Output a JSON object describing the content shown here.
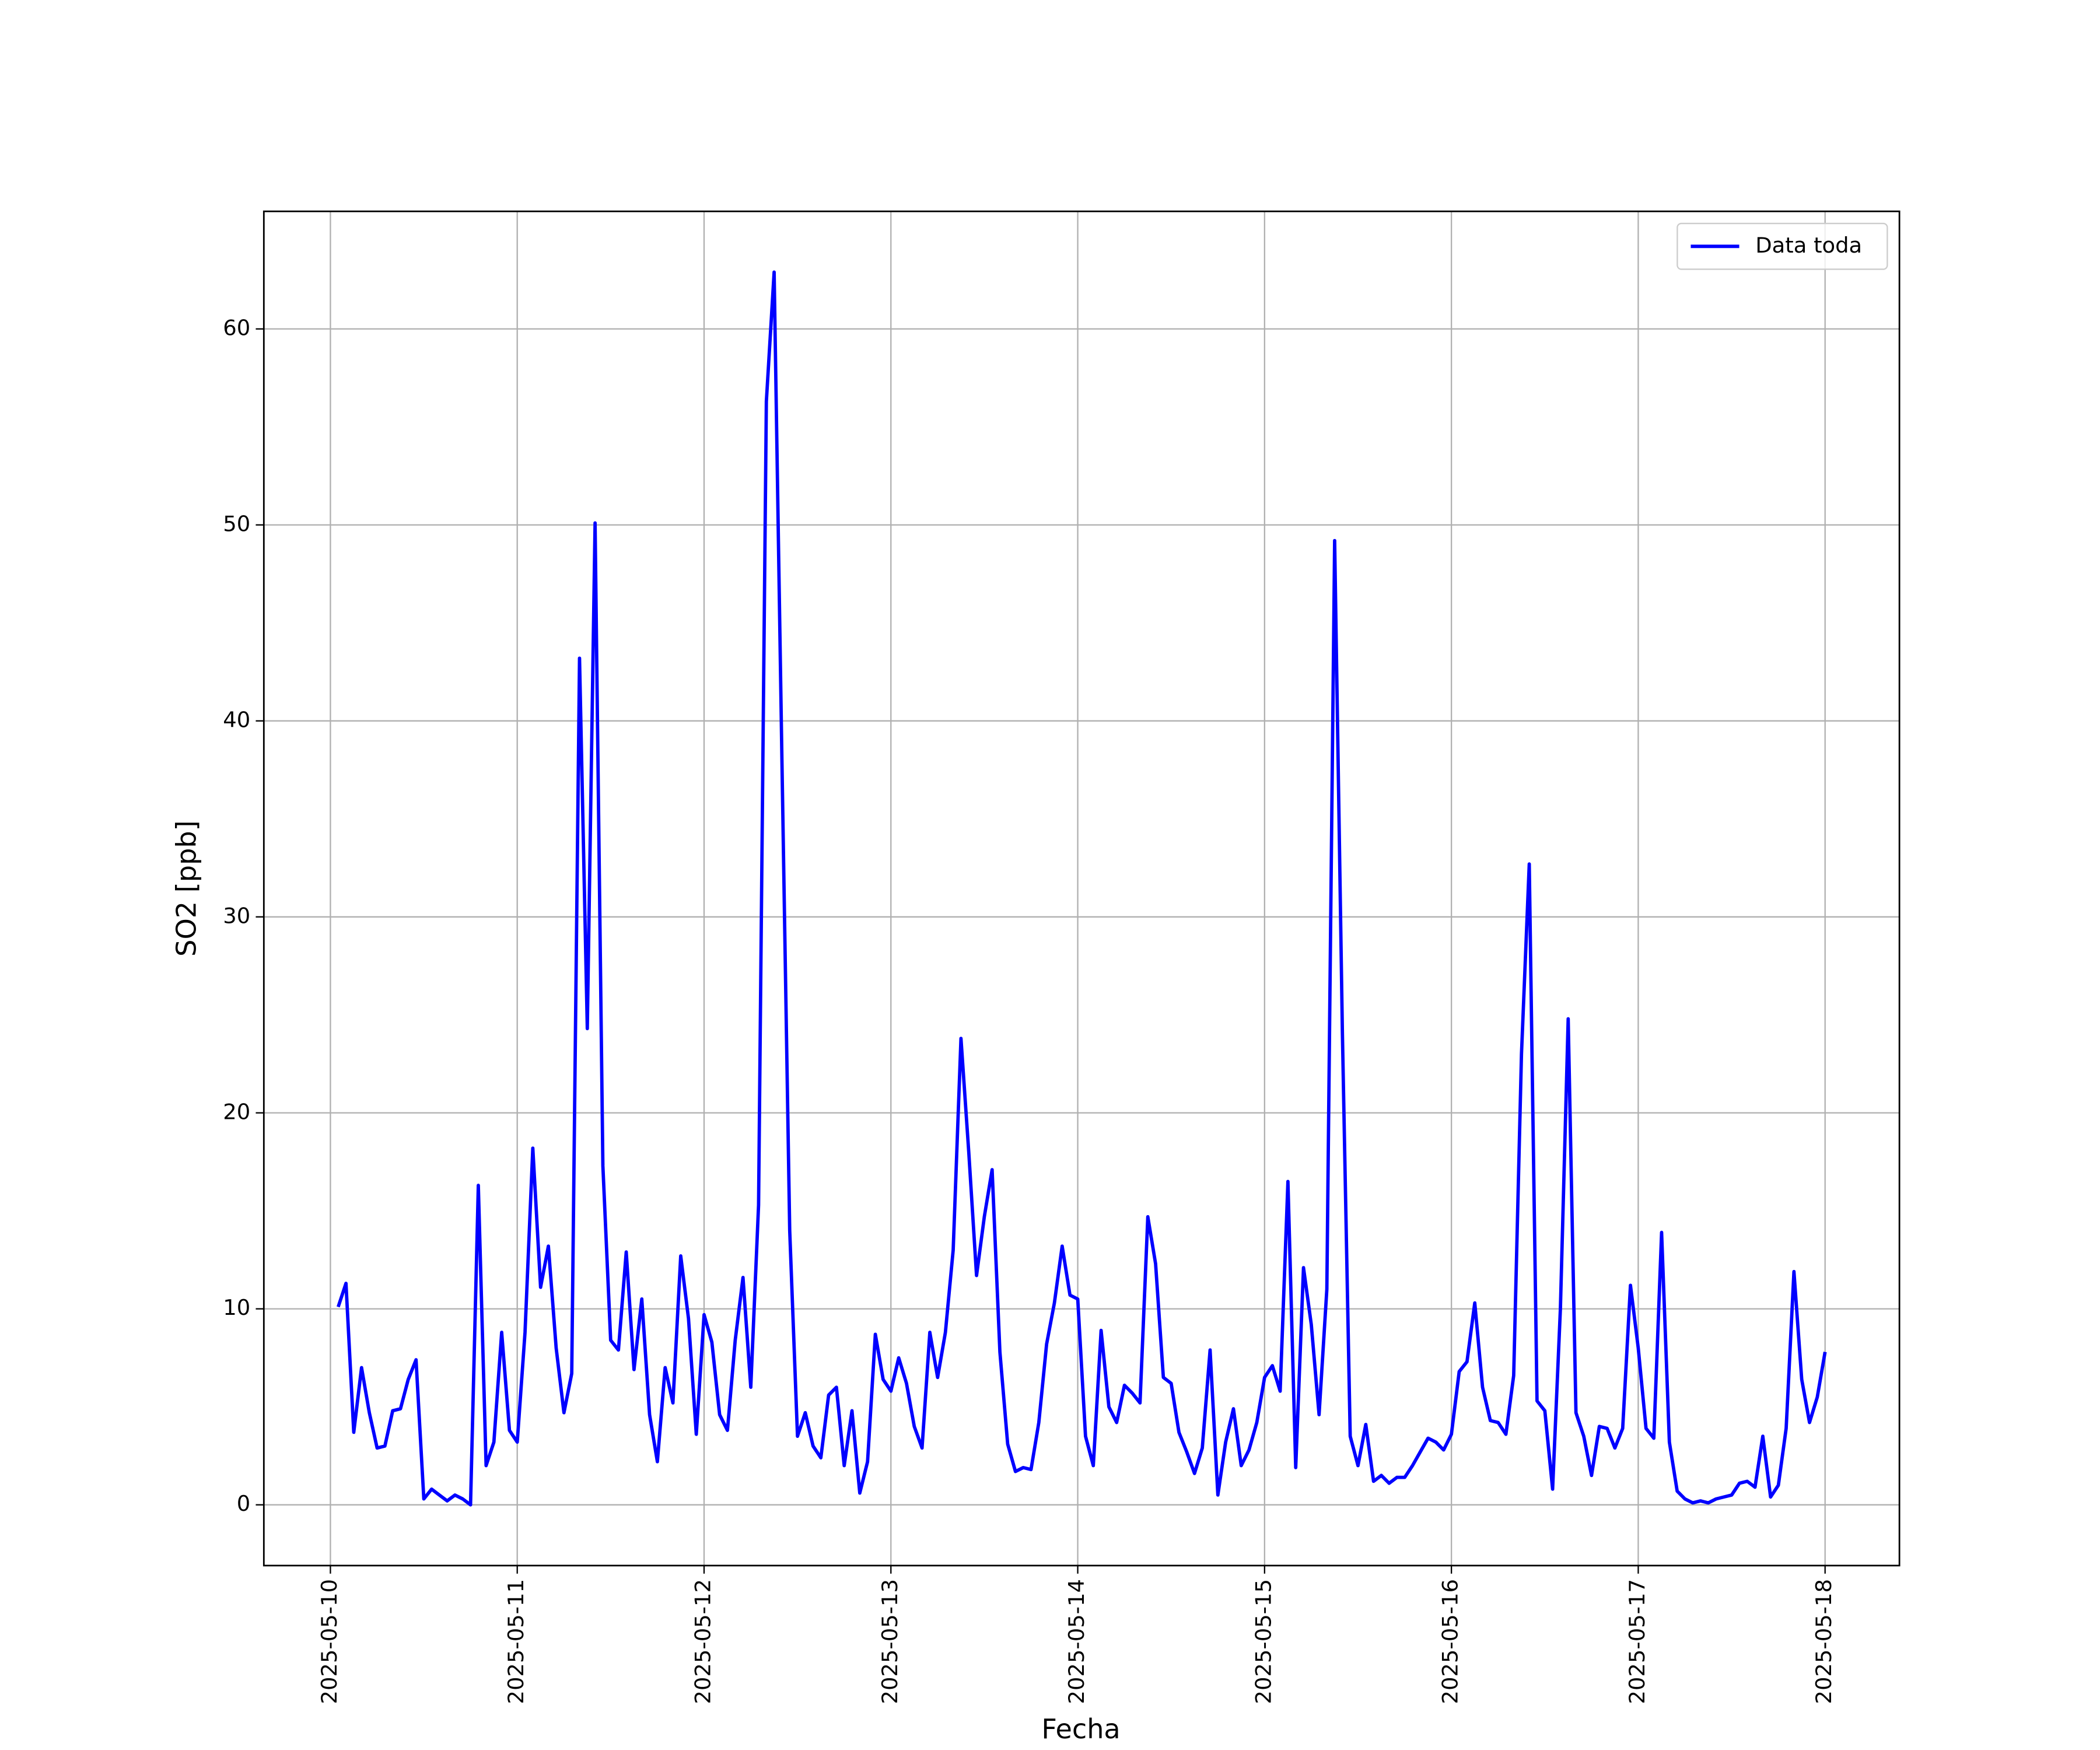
{
  "chart_data": {
    "type": "line",
    "xlabel": "Fecha",
    "ylabel": "SO2 [ppb]",
    "ylim": [
      -3.1,
      66.0
    ],
    "yticks": [
      0,
      10,
      20,
      30,
      40,
      50,
      60
    ],
    "xticks": [
      "2025-05-10",
      "2025-05-11",
      "2025-05-12",
      "2025-05-13",
      "2025-05-14",
      "2025-05-15",
      "2025-05-16",
      "2025-05-17",
      "2025-05-18"
    ],
    "grid": true,
    "legend": "upper right",
    "x": [
      "2025-05-10 01:00",
      "2025-05-10 02:00",
      "2025-05-10 03:00",
      "2025-05-10 04:00",
      "2025-05-10 05:00",
      "2025-05-10 06:00",
      "2025-05-10 07:00",
      "2025-05-10 08:00",
      "2025-05-10 09:00",
      "2025-05-10 10:00",
      "2025-05-10 11:00",
      "2025-05-10 12:00",
      "2025-05-10 13:00",
      "2025-05-10 14:00",
      "2025-05-10 15:00",
      "2025-05-10 16:00",
      "2025-05-10 17:00",
      "2025-05-10 18:00",
      "2025-05-10 19:00",
      "2025-05-10 20:00",
      "2025-05-10 21:00",
      "2025-05-10 22:00",
      "2025-05-10 23:00",
      "2025-05-11 00:00",
      "2025-05-11 01:00",
      "2025-05-11 02:00",
      "2025-05-11 03:00",
      "2025-05-11 04:00",
      "2025-05-11 05:00",
      "2025-05-11 06:00",
      "2025-05-11 07:00",
      "2025-05-11 08:00",
      "2025-05-11 09:00",
      "2025-05-11 10:00",
      "2025-05-11 11:00",
      "2025-05-11 12:00",
      "2025-05-11 13:00",
      "2025-05-11 14:00",
      "2025-05-11 15:00",
      "2025-05-11 16:00",
      "2025-05-11 17:00",
      "2025-05-11 18:00",
      "2025-05-11 19:00",
      "2025-05-11 20:00",
      "2025-05-11 21:00",
      "2025-05-11 22:00",
      "2025-05-11 23:00",
      "2025-05-12 00:00",
      "2025-05-12 01:00",
      "2025-05-12 02:00",
      "2025-05-12 03:00",
      "2025-05-12 04:00",
      "2025-05-12 05:00",
      "2025-05-12 06:00",
      "2025-05-12 07:00",
      "2025-05-12 08:00",
      "2025-05-12 09:00",
      "2025-05-12 10:00",
      "2025-05-12 11:00",
      "2025-05-12 12:00",
      "2025-05-12 13:00",
      "2025-05-12 14:00",
      "2025-05-12 15:00",
      "2025-05-12 16:00",
      "2025-05-12 17:00",
      "2025-05-12 18:00",
      "2025-05-12 19:00",
      "2025-05-12 20:00",
      "2025-05-12 21:00",
      "2025-05-12 22:00",
      "2025-05-12 23:00",
      "2025-05-13 00:00",
      "2025-05-13 01:00",
      "2025-05-13 02:00",
      "2025-05-13 03:00",
      "2025-05-13 04:00",
      "2025-05-13 05:00",
      "2025-05-13 06:00",
      "2025-05-13 07:00",
      "2025-05-13 08:00",
      "2025-05-13 09:00",
      "2025-05-13 10:00",
      "2025-05-13 11:00",
      "2025-05-13 12:00",
      "2025-05-13 13:00",
      "2025-05-13 14:00",
      "2025-05-13 15:00",
      "2025-05-13 16:00",
      "2025-05-13 17:00",
      "2025-05-13 18:00",
      "2025-05-13 19:00",
      "2025-05-13 20:00",
      "2025-05-13 21:00",
      "2025-05-13 22:00",
      "2025-05-13 23:00",
      "2025-05-14 00:00",
      "2025-05-14 01:00",
      "2025-05-14 02:00",
      "2025-05-14 03:00",
      "2025-05-14 04:00",
      "2025-05-14 05:00",
      "2025-05-14 06:00",
      "2025-05-14 07:00",
      "2025-05-14 08:00",
      "2025-05-14 09:00",
      "2025-05-14 10:00",
      "2025-05-14 11:00",
      "2025-05-14 12:00",
      "2025-05-14 13:00",
      "2025-05-14 14:00",
      "2025-05-14 15:00",
      "2025-05-14 16:00",
      "2025-05-14 17:00",
      "2025-05-14 18:00",
      "2025-05-14 19:00",
      "2025-05-14 20:00",
      "2025-05-14 21:00",
      "2025-05-14 22:00",
      "2025-05-14 23:00",
      "2025-05-15 00:00",
      "2025-05-15 01:00",
      "2025-05-15 02:00",
      "2025-05-15 03:00",
      "2025-05-15 04:00",
      "2025-05-15 05:00",
      "2025-05-15 06:00",
      "2025-05-15 07:00",
      "2025-05-15 08:00",
      "2025-05-15 09:00",
      "2025-05-15 10:00",
      "2025-05-15 11:00",
      "2025-05-15 12:00",
      "2025-05-15 13:00",
      "2025-05-15 14:00",
      "2025-05-15 15:00",
      "2025-05-15 16:00",
      "2025-05-15 17:00",
      "2025-05-15 18:00",
      "2025-05-15 19:00",
      "2025-05-15 20:00",
      "2025-05-15 21:00",
      "2025-05-15 22:00",
      "2025-05-15 23:00",
      "2025-05-16 00:00",
      "2025-05-16 01:00",
      "2025-05-16 02:00",
      "2025-05-16 03:00",
      "2025-05-16 04:00",
      "2025-05-16 05:00",
      "2025-05-16 06:00",
      "2025-05-16 07:00",
      "2025-05-16 08:00",
      "2025-05-16 09:00",
      "2025-05-16 10:00",
      "2025-05-16 11:00",
      "2025-05-16 12:00",
      "2025-05-16 13:00",
      "2025-05-16 14:00",
      "2025-05-16 15:00",
      "2025-05-16 16:00",
      "2025-05-16 17:00",
      "2025-05-16 18:00",
      "2025-05-16 19:00",
      "2025-05-16 20:00",
      "2025-05-16 21:00",
      "2025-05-16 22:00",
      "2025-05-16 23:00",
      "2025-05-17 00:00",
      "2025-05-17 01:00",
      "2025-05-17 02:00",
      "2025-05-17 03:00",
      "2025-05-17 04:00",
      "2025-05-17 05:00",
      "2025-05-17 06:00",
      "2025-05-17 07:00",
      "2025-05-17 08:00",
      "2025-05-17 09:00",
      "2025-05-17 10:00",
      "2025-05-17 11:00",
      "2025-05-17 12:00",
      "2025-05-17 13:00",
      "2025-05-17 14:00",
      "2025-05-17 15:00",
      "2025-05-17 16:00",
      "2025-05-17 17:00",
      "2025-05-17 18:00",
      "2025-05-17 19:00",
      "2025-05-17 20:00",
      "2025-05-17 21:00",
      "2025-05-17 22:00",
      "2025-05-17 23:00",
      "2025-05-18 00:00"
    ],
    "series": [
      {
        "name": "Data toda",
        "color": "#0000ff",
        "values": [
          10.1,
          11.3,
          3.7,
          7.0,
          4.7,
          2.9,
          3.0,
          4.8,
          4.9,
          6.4,
          7.4,
          0.3,
          0.8,
          0.5,
          0.2,
          0.5,
          0.3,
          0.0,
          16.3,
          2.0,
          3.2,
          8.8,
          3.8,
          3.2,
          8.8,
          18.2,
          11.1,
          13.2,
          8.0,
          4.7,
          6.7,
          43.2,
          24.3,
          50.1,
          17.3,
          8.4,
          7.9,
          12.9,
          6.9,
          10.5,
          4.6,
          2.2,
          7.0,
          5.2,
          12.7,
          9.5,
          3.6,
          9.7,
          8.3,
          4.6,
          3.8,
          8.4,
          11.6,
          6.0,
          15.3,
          56.3,
          62.9,
          38.0,
          14.0,
          3.5,
          4.7,
          3.0,
          2.4,
          5.6,
          6.0,
          2.0,
          4.8,
          0.6,
          2.2,
          8.7,
          6.4,
          5.8,
          7.5,
          6.2,
          4.0,
          2.9,
          8.8,
          6.5,
          8.8,
          13.0,
          23.8,
          18.0,
          11.7,
          14.7,
          17.1,
          7.8,
          3.1,
          1.7,
          1.9,
          1.8,
          4.2,
          8.2,
          10.3,
          13.2,
          10.7,
          10.5,
          3.5,
          2.0,
          8.9,
          5.0,
          4.2,
          6.1,
          5.7,
          5.2,
          14.7,
          12.3,
          6.5,
          6.2,
          3.7,
          2.7,
          1.6,
          2.9,
          7.9,
          0.5,
          3.2,
          4.9,
          2.0,
          2.8,
          4.2,
          6.5,
          7.1,
          5.8,
          16.5,
          1.9,
          12.1,
          9.2,
          4.6,
          11.0,
          49.2,
          24.0,
          3.5,
          2.0,
          4.1,
          1.2,
          1.5,
          1.1,
          1.4,
          1.4,
          2.0,
          2.7,
          3.4,
          3.2,
          2.8,
          3.6,
          6.8,
          7.3,
          10.3,
          6.0,
          4.3,
          4.2,
          3.6,
          6.6,
          23.0,
          32.7,
          5.3,
          4.8,
          0.8,
          10.0,
          24.8,
          4.7,
          3.5,
          1.5,
          4.0,
          3.9,
          2.9,
          3.9,
          11.2,
          8.0,
          3.9,
          3.4,
          13.9,
          3.2,
          0.7,
          0.3,
          0.1,
          0.2,
          0.1,
          0.3,
          0.4,
          0.5,
          1.1,
          1.2,
          0.9,
          3.5,
          0.4,
          1.0,
          3.9,
          11.9,
          6.4,
          4.2,
          5.5,
          7.8
        ]
      }
    ]
  }
}
